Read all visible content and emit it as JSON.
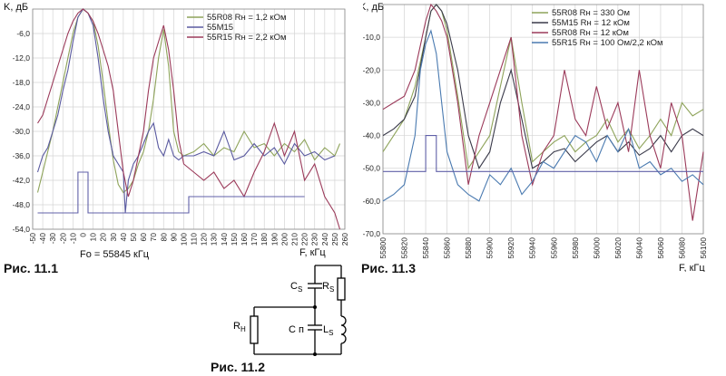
{
  "chart_data": [
    {
      "type": "line",
      "caption": "Рис. 11.1",
      "ylabel": "K, дБ",
      "xlabel": "F, кГц",
      "xsublabel": "Fo = 55845 кГц",
      "xlim": [
        -50,
        260
      ],
      "ylim": [
        -54,
        0
      ],
      "xticks": [
        -50,
        -40,
        -30,
        -20,
        -10,
        0,
        10,
        20,
        30,
        40,
        50,
        60,
        70,
        80,
        90,
        100,
        110,
        120,
        130,
        140,
        150,
        160,
        170,
        180,
        190,
        200,
        210,
        220,
        230,
        240,
        250,
        260
      ],
      "yticks": [
        -6,
        -12,
        -18,
        -24,
        -30,
        -36,
        -42,
        -48,
        -54
      ],
      "ytick_labels": [
        "-6,0",
        "-12,0",
        "-18,0",
        "-24,0",
        "-30,0",
        "-36,0",
        "-42,0",
        "-48,0",
        "-54,0"
      ],
      "grid": true,
      "legend_position": "top-right",
      "series": [
        {
          "name": "55R08 Rн = 1,2 кОм",
          "color": "#8ea35a",
          "x": [
            -45,
            -40,
            -35,
            -30,
            -25,
            -20,
            -15,
            -10,
            -5,
            0,
            5,
            10,
            15,
            20,
            25,
            30,
            35,
            40,
            45,
            50,
            55,
            60,
            65,
            70,
            75,
            80,
            85,
            90,
            95,
            100,
            110,
            120,
            130,
            140,
            150,
            160,
            170,
            180,
            190,
            200,
            210,
            220,
            230,
            240,
            250,
            255
          ],
          "y": [
            -45,
            -40,
            -35,
            -30,
            -24,
            -18,
            -12,
            -6,
            -2,
            0,
            -1,
            -3,
            -9,
            -18,
            -28,
            -37,
            -43,
            -45,
            -44,
            -42,
            -38,
            -35,
            -30,
            -22,
            -12,
            -5,
            -14,
            -30,
            -35,
            -36,
            -35,
            -33,
            -36,
            -34,
            -35,
            -30,
            -34,
            -33,
            -36,
            -33,
            -35,
            -32,
            -37,
            -34,
            -36,
            -33
          ]
        },
        {
          "name": "55M15",
          "color": "#5a5aa0",
          "x": [
            -45,
            -40,
            -35,
            -30,
            -25,
            -20,
            -15,
            -10,
            -5,
            0,
            5,
            10,
            15,
            20,
            25,
            30,
            35,
            40,
            42,
            45,
            50,
            55,
            60,
            65,
            70,
            75,
            80,
            85,
            90,
            95,
            100,
            110,
            120,
            130,
            140,
            150,
            160,
            170,
            180,
            190,
            200,
            210,
            220,
            230,
            240,
            250
          ],
          "y": [
            -40,
            -36,
            -34,
            -30,
            -26,
            -20,
            -15,
            -8,
            -2,
            0,
            -1,
            -4,
            -12,
            -22,
            -30,
            -36,
            -38,
            -40,
            -50,
            -42,
            -38,
            -36,
            -33,
            -30,
            -28,
            -34,
            -36,
            -32,
            -36,
            -37,
            -36,
            -36,
            -35,
            -36,
            -30,
            -37,
            -36,
            -33,
            -36,
            -34,
            -38,
            -33,
            -36,
            -35,
            -37,
            -36
          ]
        },
        {
          "name": "55R15 Rн = 2,2 кОм",
          "color": "#9b3a5a",
          "x": [
            -45,
            -40,
            -35,
            -30,
            -25,
            -20,
            -15,
            -10,
            -5,
            0,
            5,
            10,
            15,
            20,
            25,
            30,
            35,
            40,
            45,
            50,
            55,
            60,
            65,
            70,
            75,
            80,
            85,
            90,
            95,
            100,
            110,
            120,
            130,
            140,
            150,
            160,
            170,
            180,
            190,
            200,
            210,
            220,
            230,
            240,
            250,
            255
          ],
          "y": [
            -28,
            -26,
            -22,
            -18,
            -14,
            -10,
            -6,
            -3,
            -1,
            0,
            -1,
            -3,
            -6,
            -10,
            -14,
            -20,
            -30,
            -40,
            -46,
            -42,
            -36,
            -30,
            -20,
            -12,
            -8,
            -4,
            -10,
            -20,
            -32,
            -38,
            -40,
            -42,
            -40,
            -44,
            -42,
            -46,
            -40,
            -35,
            -28,
            -36,
            -30,
            -42,
            -38,
            -46,
            -50,
            -54
          ]
        },
        {
          "name": "",
          "color": "#6060a8",
          "step": true,
          "x": [
            -45,
            -5,
            -5,
            5,
            5,
            105,
            105,
            220
          ],
          "y": [
            -50,
            -50,
            -40,
            -40,
            -50,
            -50,
            -46,
            -46
          ]
        }
      ]
    },
    {
      "type": "line",
      "caption": "Рис. 11.3",
      "ylabel": "K, дБ",
      "xlabel": "F, кГц",
      "xlim": [
        55800,
        56100
      ],
      "ylim": [
        -70,
        0
      ],
      "xticks": [
        55800,
        55820,
        55840,
        55860,
        55880,
        55900,
        55920,
        55940,
        55960,
        55980,
        56000,
        56020,
        56040,
        56060,
        56080,
        56100
      ],
      "yticks": [
        -10,
        -20,
        -30,
        -40,
        -50,
        -60,
        -70
      ],
      "ytick_labels": [
        "-10,0",
        "-20,0",
        "-30,0",
        "-40,0",
        "-50,0",
        "-60,0",
        "-70,0"
      ],
      "grid": true,
      "legend_position": "top-right",
      "series": [
        {
          "name": "55R08 Rн = 330 Ом",
          "color": "#8ea35a",
          "x": [
            55800,
            55810,
            55820,
            55830,
            55840,
            55845,
            55850,
            55855,
            55860,
            55870,
            55880,
            55890,
            55900,
            55910,
            55920,
            55930,
            55940,
            55950,
            55960,
            55970,
            55980,
            55990,
            56000,
            56010,
            56020,
            56030,
            56040,
            56050,
            56060,
            56070,
            56080,
            56090,
            56100
          ],
          "y": [
            -45,
            -40,
            -35,
            -25,
            -10,
            -2,
            0,
            -2,
            -8,
            -28,
            -50,
            -45,
            -40,
            -25,
            -10,
            -30,
            -48,
            -45,
            -42,
            -40,
            -45,
            -42,
            -40,
            -35,
            -42,
            -38,
            -44,
            -40,
            -35,
            -40,
            -30,
            -34,
            -32
          ]
        },
        {
          "name": "55M15 Rн = 12 кОм",
          "color": "#3a3a4a",
          "x": [
            55800,
            55810,
            55820,
            55830,
            55840,
            55845,
            55850,
            55855,
            55860,
            55870,
            55880,
            55890,
            55900,
            55910,
            55920,
            55930,
            55940,
            55950,
            55960,
            55970,
            55980,
            55990,
            56000,
            56010,
            56020,
            56030,
            56040,
            56050,
            56060,
            56070,
            56080,
            56090,
            56100
          ],
          "y": [
            -40,
            -38,
            -35,
            -28,
            -10,
            -2,
            0,
            -2,
            -6,
            -20,
            -40,
            -50,
            -45,
            -30,
            -20,
            -35,
            -50,
            -48,
            -45,
            -44,
            -48,
            -45,
            -42,
            -40,
            -45,
            -42,
            -46,
            -44,
            -40,
            -45,
            -40,
            -38,
            -40
          ]
        },
        {
          "name": "55R08 Rн = 12 кОм",
          "color": "#9b3a5a",
          "x": [
            55800,
            55810,
            55820,
            55830,
            55840,
            55845,
            55850,
            55855,
            55860,
            55870,
            55880,
            55890,
            55900,
            55910,
            55920,
            55930,
            55940,
            55950,
            55960,
            55970,
            55980,
            55990,
            56000,
            56010,
            56020,
            56030,
            56040,
            56050,
            56060,
            56070,
            56080,
            56090,
            56100
          ],
          "y": [
            -32,
            -30,
            -28,
            -20,
            -5,
            0,
            -2,
            -5,
            -10,
            -30,
            -55,
            -40,
            -30,
            -20,
            -10,
            -40,
            -55,
            -45,
            -40,
            -20,
            -35,
            -40,
            -25,
            -38,
            -30,
            -45,
            -20,
            -40,
            -50,
            -30,
            -40,
            -66,
            -45
          ]
        },
        {
          "name": "55R15 Rн = 100 Ом/2,2 кОм",
          "color": "#4a7ab0",
          "x": [
            55800,
            55810,
            55820,
            55830,
            55835,
            55840,
            55845,
            55850,
            55855,
            55860,
            55870,
            55880,
            55890,
            55900,
            55910,
            55920,
            55930,
            55940,
            55950,
            55960,
            55970,
            55980,
            55990,
            56000,
            56010,
            56020,
            56030,
            56040,
            56050,
            56060,
            56070,
            56080,
            56090,
            56100
          ],
          "y": [
            -60,
            -58,
            -55,
            -40,
            -20,
            -12,
            -8,
            -15,
            -30,
            -45,
            -55,
            -58,
            -60,
            -52,
            -55,
            -50,
            -58,
            -54,
            -48,
            -50,
            -45,
            -40,
            -42,
            -48,
            -40,
            -45,
            -38,
            -50,
            -48,
            -52,
            -50,
            -54,
            -52,
            -55
          ]
        },
        {
          "name": "",
          "color": "#6060a8",
          "step": true,
          "x": [
            55800,
            55840,
            55840,
            55850,
            55850,
            56100
          ],
          "y": [
            -51,
            -51,
            -40,
            -40,
            -51,
            -51
          ]
        }
      ]
    }
  ],
  "fig2": {
    "caption": "Рис. 11.2",
    "labels": {
      "cs": "C",
      "cs_sub": "S",
      "rs": "R",
      "rs_sub": "S",
      "cn": "C",
      "cn_sub": "п",
      "ls": "L",
      "ls_sub": "S",
      "rn": "R",
      "rn_sub": "Н"
    }
  }
}
